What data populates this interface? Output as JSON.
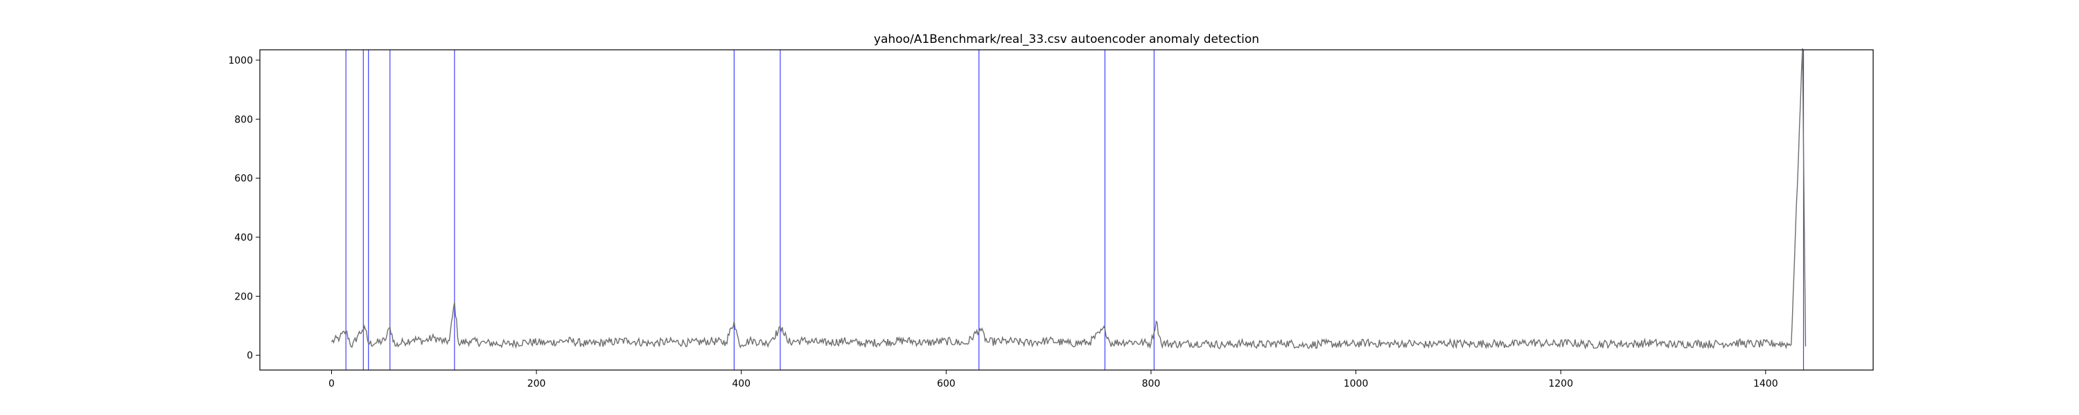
{
  "chart_data": {
    "type": "line",
    "title": "yahoo/A1Benchmark/real_33.csv autoencoder anomaly detection",
    "xlabel": "",
    "ylabel": "",
    "xlim": [
      -70,
      1505
    ],
    "ylim": [
      -50,
      1035
    ],
    "x_ticks": [
      0,
      200,
      400,
      600,
      800,
      1000,
      1200,
      1400
    ],
    "y_ticks": [
      0,
      200,
      400,
      600,
      800,
      1000
    ],
    "grid": false,
    "colors": {
      "series": "#6e6e6e",
      "anomaly_lines": "#0000ff",
      "axes": "#000000"
    },
    "series": [
      {
        "x_start": 0,
        "x_end": 1439,
        "points": [
          [
            0,
            45
          ],
          [
            8,
            60
          ],
          [
            14,
            82
          ],
          [
            20,
            28
          ],
          [
            26,
            70
          ],
          [
            30,
            85
          ],
          [
            33,
            88
          ],
          [
            36,
            40
          ],
          [
            44,
            42
          ],
          [
            52,
            50
          ],
          [
            57,
            95
          ],
          [
            62,
            32
          ],
          [
            70,
            45
          ],
          [
            80,
            55
          ],
          [
            90,
            48
          ],
          [
            100,
            60
          ],
          [
            110,
            45
          ],
          [
            115,
            50
          ],
          [
            120,
            180
          ],
          [
            124,
            40
          ],
          [
            135,
            48
          ],
          [
            150,
            42
          ],
          [
            170,
            38
          ],
          [
            190,
            45
          ],
          [
            210,
            42
          ],
          [
            230,
            50
          ],
          [
            250,
            38
          ],
          [
            270,
            44
          ],
          [
            290,
            50
          ],
          [
            310,
            40
          ],
          [
            330,
            46
          ],
          [
            350,
            42
          ],
          [
            370,
            48
          ],
          [
            385,
            44
          ],
          [
            393,
            115
          ],
          [
            398,
            38
          ],
          [
            410,
            50
          ],
          [
            425,
            40
          ],
          [
            440,
            95
          ],
          [
            445,
            45
          ],
          [
            460,
            50
          ],
          [
            480,
            42
          ],
          [
            500,
            48
          ],
          [
            520,
            40
          ],
          [
            540,
            45
          ],
          [
            560,
            50
          ],
          [
            580,
            42
          ],
          [
            600,
            48
          ],
          [
            620,
            40
          ],
          [
            633,
            90
          ],
          [
            640,
            45
          ],
          [
            660,
            48
          ],
          [
            680,
            42
          ],
          [
            700,
            50
          ],
          [
            720,
            40
          ],
          [
            740,
            44
          ],
          [
            755,
            90
          ],
          [
            760,
            42
          ],
          [
            780,
            46
          ],
          [
            800,
            40
          ],
          [
            805,
            115
          ],
          [
            810,
            40
          ],
          [
            830,
            38
          ],
          [
            850,
            42
          ],
          [
            870,
            35
          ],
          [
            890,
            40
          ],
          [
            910,
            36
          ],
          [
            930,
            42
          ],
          [
            950,
            34
          ],
          [
            970,
            40
          ],
          [
            990,
            36
          ],
          [
            1010,
            42
          ],
          [
            1030,
            38
          ],
          [
            1050,
            40
          ],
          [
            1070,
            36
          ],
          [
            1090,
            42
          ],
          [
            1110,
            38
          ],
          [
            1130,
            40
          ],
          [
            1150,
            36
          ],
          [
            1170,
            44
          ],
          [
            1190,
            38
          ],
          [
            1210,
            42
          ],
          [
            1230,
            36
          ],
          [
            1250,
            40
          ],
          [
            1270,
            38
          ],
          [
            1290,
            42
          ],
          [
            1310,
            36
          ],
          [
            1330,
            40
          ],
          [
            1350,
            38
          ],
          [
            1370,
            42
          ],
          [
            1390,
            38
          ],
          [
            1410,
            40
          ],
          [
            1425,
            36
          ],
          [
            1436,
            1040
          ],
          [
            1439,
            30
          ]
        ],
        "noise_amplitude": 28
      }
    ],
    "anomalies": [
      14,
      31,
      36,
      57,
      120,
      393,
      438,
      632,
      755,
      803,
      1437
    ]
  }
}
